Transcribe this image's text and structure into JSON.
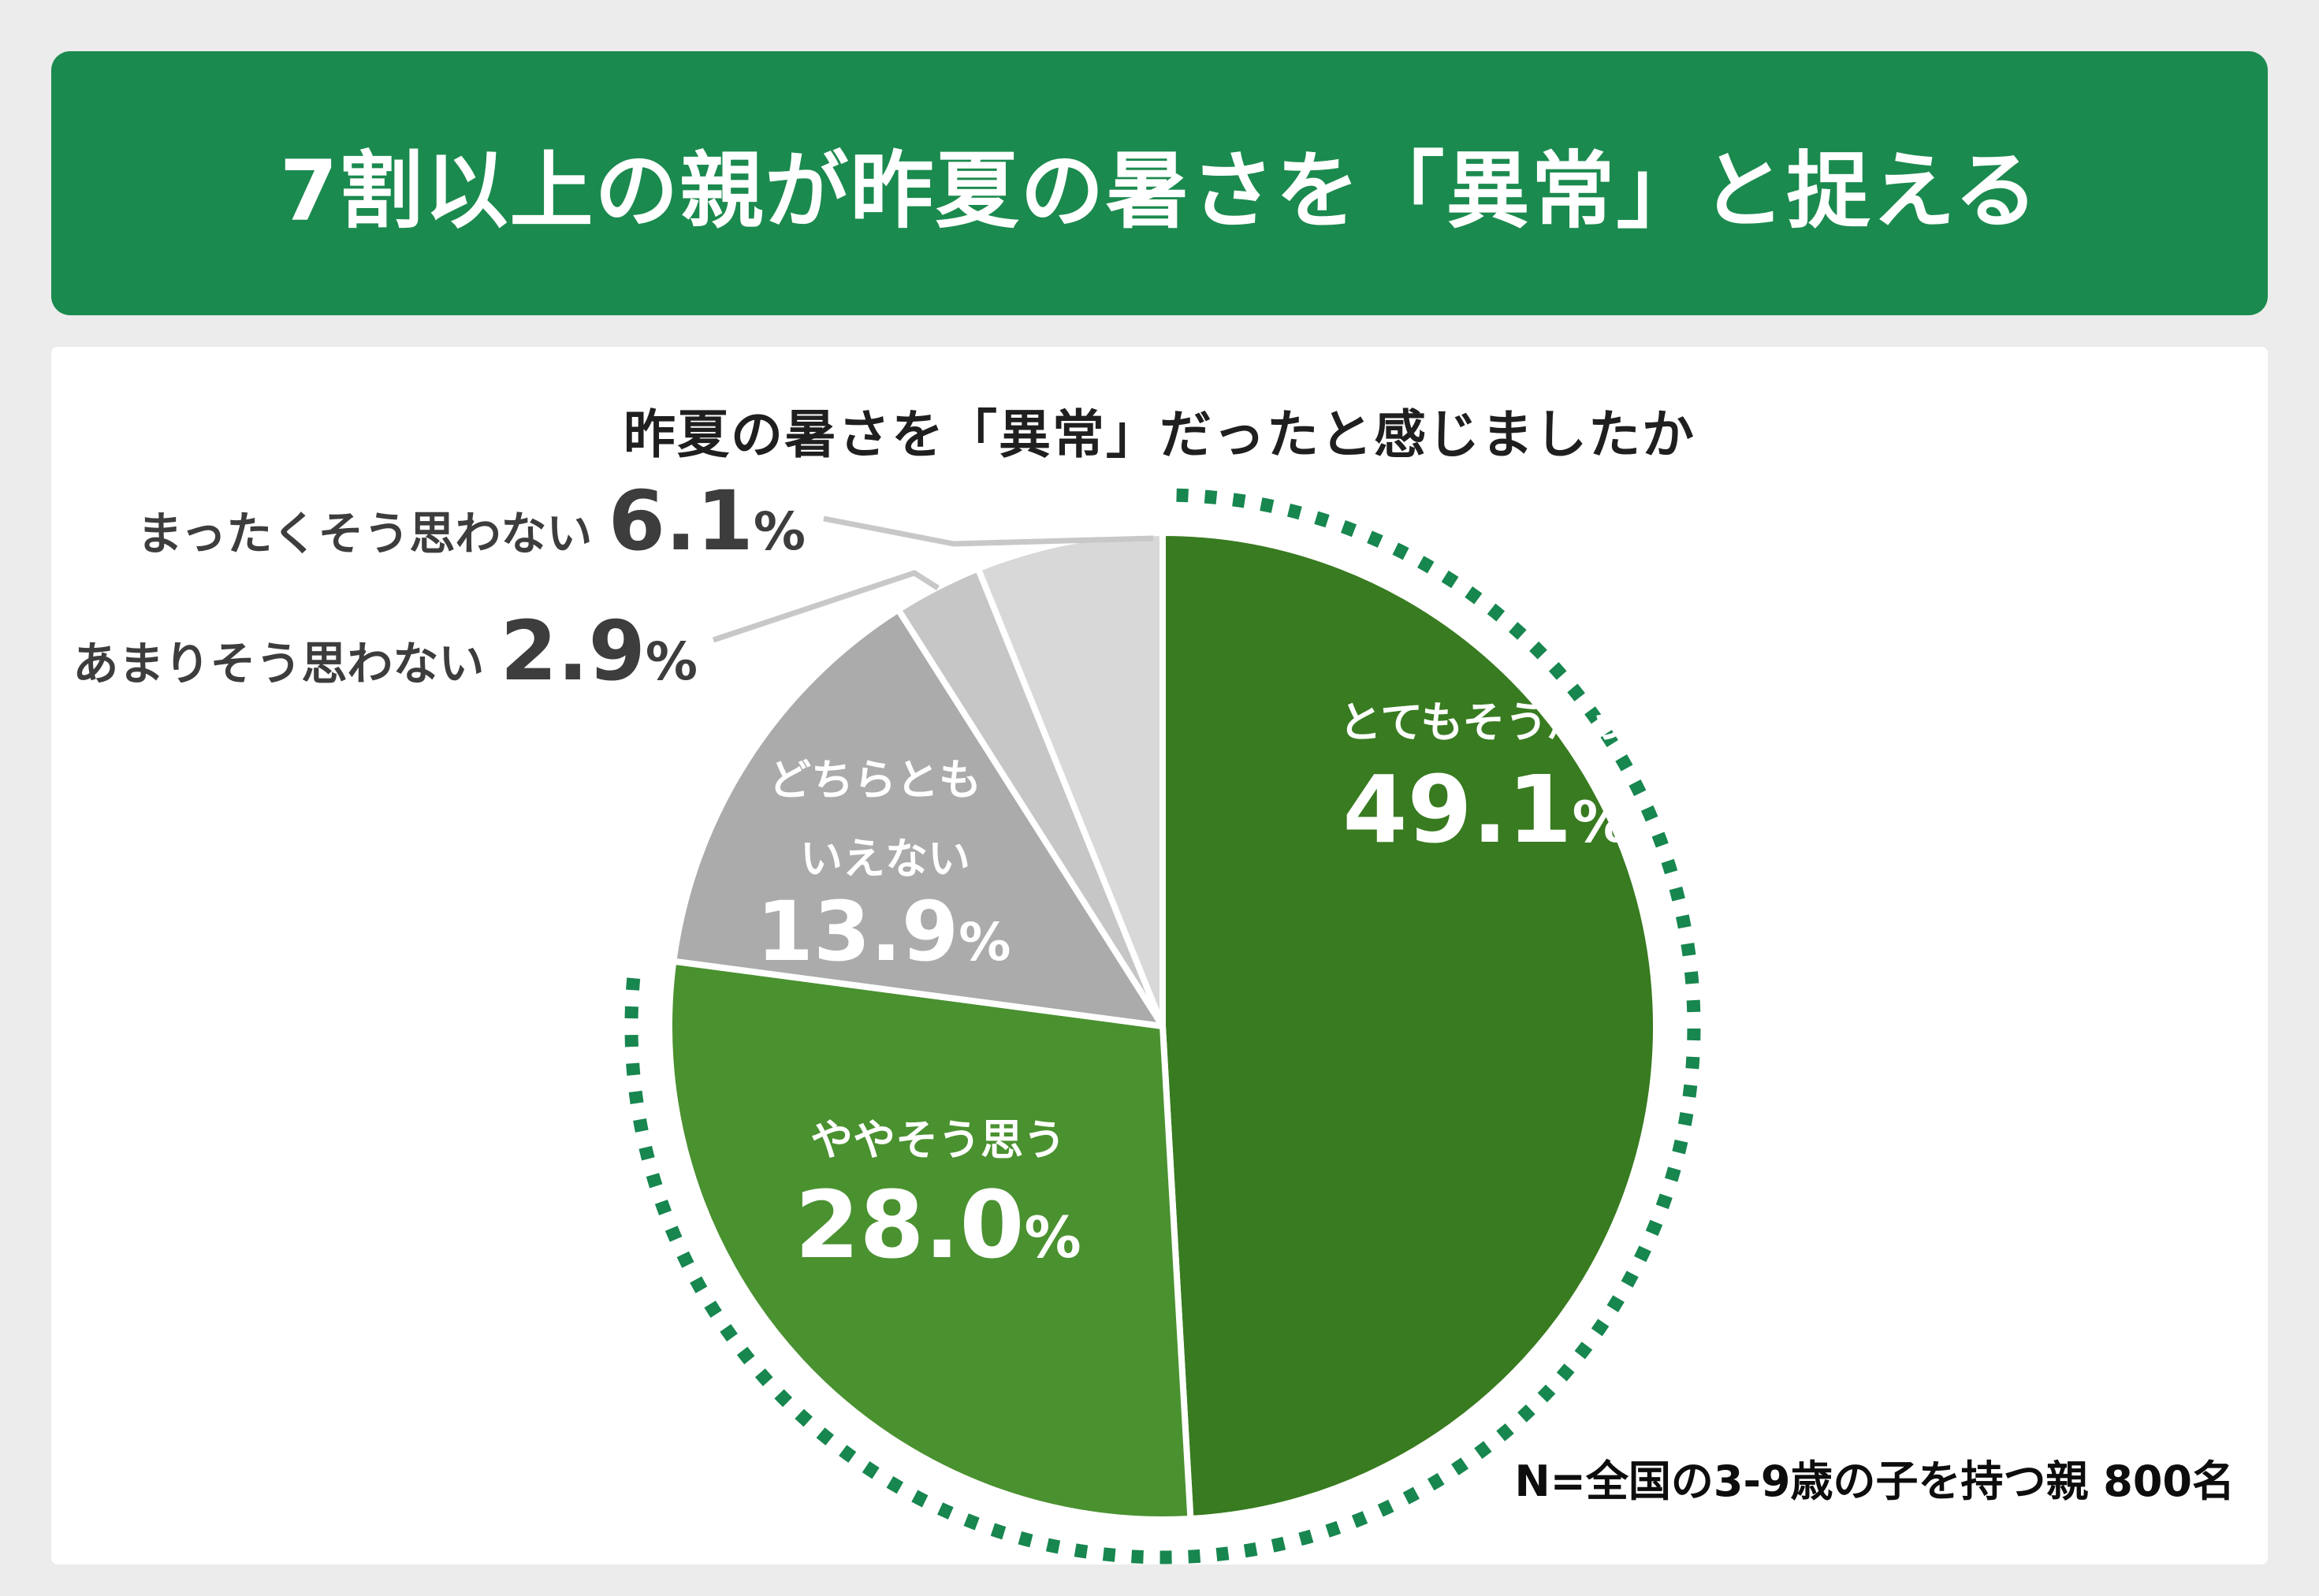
{
  "page": {
    "background": "#ECECEC"
  },
  "header": {
    "title": "7割以上の親が昨夏の暑さを「異常」と捉える",
    "background": "#1B8A4E",
    "text_color": "#FFFFFF"
  },
  "chart": {
    "title": "昨夏の暑さを「異常」だったと感じましたか",
    "note": "N=全国の3-9歳の子を持つ親 800名"
  },
  "chart_data": {
    "type": "pie",
    "title": "昨夏の暑さを「異常」だったと感じましたか",
    "start_angle_deg": 0,
    "direction": "clockwise",
    "units": "%",
    "slices": [
      {
        "label": "とてもそう思う",
        "value": 49.1,
        "pct_text": "49.1",
        "unit": "%",
        "color": "#387B20",
        "label_placement": "inside"
      },
      {
        "label": "ややそう思う",
        "value": 28.0,
        "pct_text": "28.0",
        "unit": "%",
        "color": "#4A9130",
        "label_placement": "inside"
      },
      {
        "label": "どちらともいえない",
        "value": 13.9,
        "pct_text": "13.9",
        "unit": "%",
        "color": "#ABABAB",
        "label_placement": "inside",
        "label_line1": "どちらとも",
        "label_line2": "いえない"
      },
      {
        "label": "あまりそう思わない",
        "value": 2.9,
        "pct_text": "2.9",
        "unit": "%",
        "color": "#C6C6C6",
        "label_placement": "outside"
      },
      {
        "label": "まったくそう思わない",
        "value": 6.1,
        "pct_text": "6.1",
        "unit": "%",
        "color": "#D8D8D8",
        "label_placement": "outside"
      }
    ],
    "highlight_arc": {
      "style": "dotted",
      "color": "#17864F",
      "covers": [
        "とてもそう思う",
        "ややそう思う"
      ],
      "total_pct": 77.1
    },
    "legend_position": "labels-on-chart",
    "sample_note": "N=全国の3-9歳の子を持つ親 800名"
  }
}
